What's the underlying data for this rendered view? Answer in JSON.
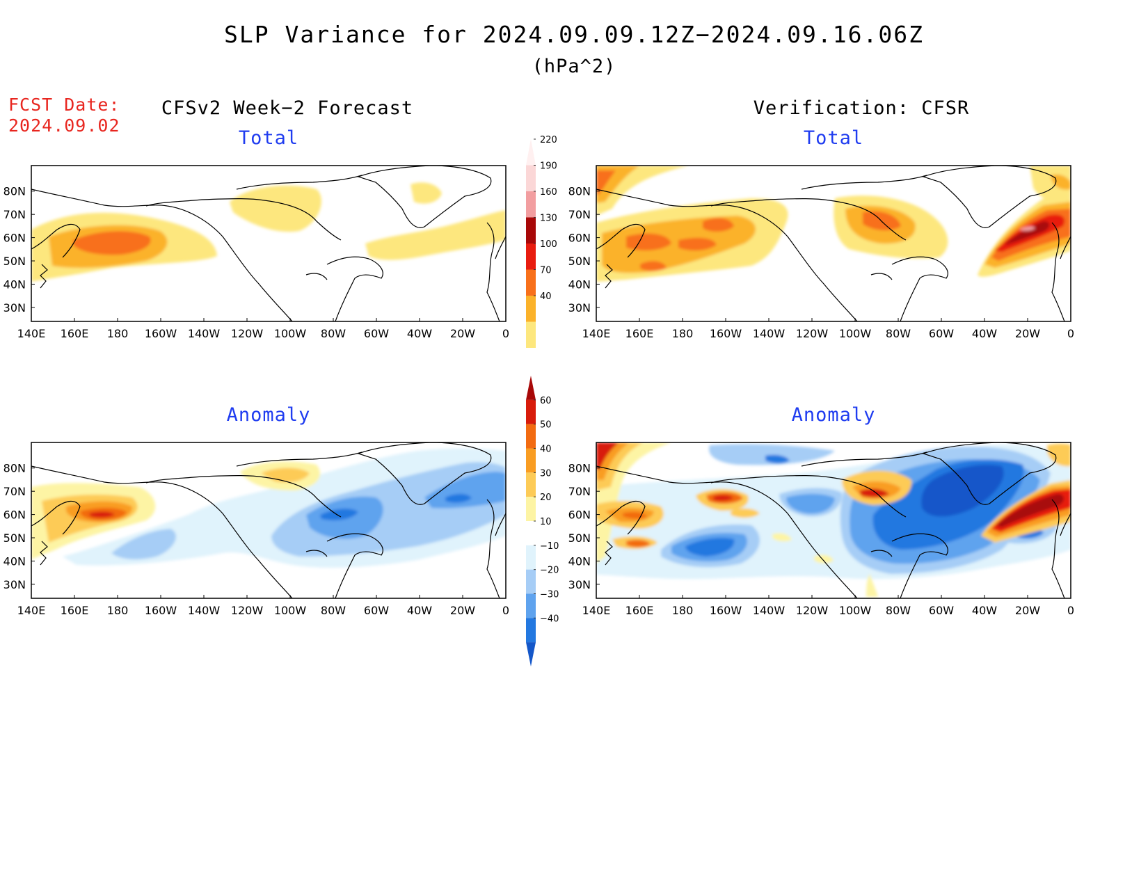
{
  "header": {
    "title": "SLP Variance for 2024.09.09.12Z−2024.09.16.06Z",
    "units": "(hPa^2)",
    "fcst_label": "FCST Date:",
    "fcst_date": "2024.09.02",
    "left_heading": "CFSv2 Week−2 Forecast",
    "right_heading": "Verification: CFSR"
  },
  "panels": {
    "forecast_total": {
      "title": "Total"
    },
    "verification_total": {
      "title": "Total"
    },
    "forecast_anomaly": {
      "title": "Anomaly"
    },
    "verification_anomaly": {
      "title": "Anomaly"
    }
  },
  "axes": {
    "lon_ticks": [
      "140E",
      "160E",
      "180",
      "160W",
      "140W",
      "120W",
      "100W",
      "80W",
      "60W",
      "40W",
      "20W",
      "0"
    ],
    "lat_ticks": [
      "80N",
      "70N",
      "60N",
      "50N",
      "40N",
      "30N"
    ]
  },
  "colorbars": {
    "total": {
      "labels": [
        "40",
        "70",
        "100",
        "130",
        "160",
        "190",
        "220"
      ],
      "colors": [
        "#fde77e",
        "#fbb22a",
        "#f8701a",
        "#e81c0f",
        "#a80808",
        "#f29ea0",
        "#fbd7d7",
        "#fff0f0"
      ]
    },
    "anomaly": {
      "labels": [
        "−40",
        "−30",
        "−20",
        "−10",
        "10",
        "20",
        "30",
        "40",
        "50",
        "60"
      ],
      "colors": [
        "#1457c9",
        "#2378e0",
        "#5fa3ee",
        "#a6cdf6",
        "#e0f3fc",
        "#ffffff",
        "#fdf4a4",
        "#fdcb57",
        "#f99d22",
        "#f26b11",
        "#d81c0b",
        "#a80808"
      ]
    }
  }
}
